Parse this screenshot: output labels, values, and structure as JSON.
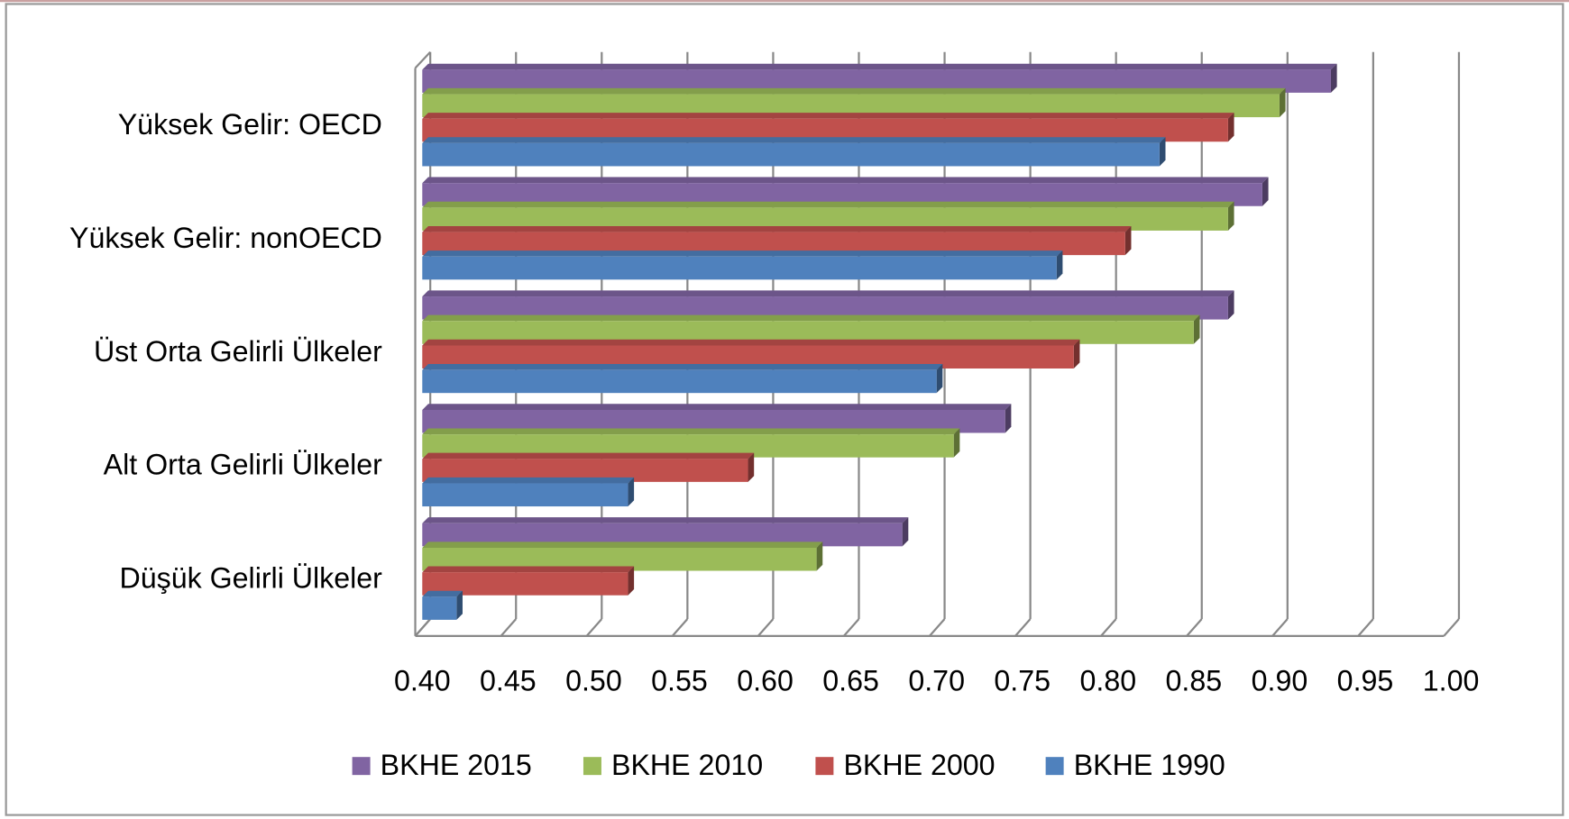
{
  "chart_data": {
    "type": "bar",
    "orientation": "horizontal",
    "categories": [
      "Yüksek Gelir: OECD",
      "Yüksek Gelir: nonOECD",
      "Üst Orta Gelirli Ülkeler",
      "Alt Orta Gelirli Ülkeler",
      "Düşük Gelirli Ülkeler"
    ],
    "series": [
      {
        "name": "BKHE 2015",
        "color": "#8064a2",
        "values": [
          0.93,
          0.89,
          0.87,
          0.74,
          0.68
        ]
      },
      {
        "name": "BKHE 2010",
        "color": "#9bbb59",
        "values": [
          0.9,
          0.87,
          0.85,
          0.71,
          0.63
        ]
      },
      {
        "name": "BKHE 2000",
        "color": "#c0504d",
        "values": [
          0.87,
          0.81,
          0.78,
          0.59,
          0.52
        ]
      },
      {
        "name": "BKHE 1990",
        "color": "#4f81bd",
        "values": [
          0.83,
          0.77,
          0.7,
          0.52,
          0.42
        ]
      }
    ],
    "xlim": [
      0.4,
      1.0
    ],
    "xticks": [
      {
        "value": 0.4,
        "label": "0.40"
      },
      0.45,
      {
        "value": 0.5,
        "label": "0.50"
      },
      0.55,
      {
        "value": 0.6,
        "label": "0.60"
      },
      0.65,
      {
        "value": 0.7,
        "label": "0.70"
      },
      0.75,
      {
        "value": 0.8,
        "label": "0.80"
      },
      0.85,
      {
        "value": 0.9,
        "label": "0.90"
      },
      0.95,
      {
        "value": 1.0,
        "label": "1.00"
      }
    ],
    "grid": true,
    "legend": "bottom"
  }
}
